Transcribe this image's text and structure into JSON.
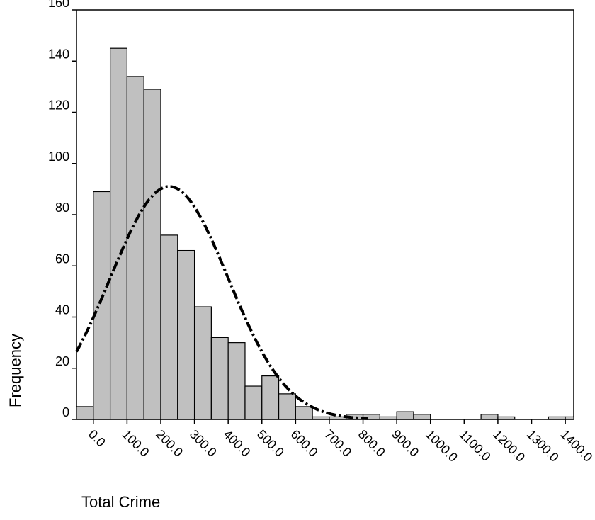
{
  "chart_data": {
    "type": "bar",
    "title": "",
    "xlabel": "Total Crime",
    "ylabel": "Frequency",
    "ylim": [
      0,
      160
    ],
    "xlim": [
      -50,
      1425
    ],
    "y_ticks": [
      "0",
      "20",
      "40",
      "60",
      "80",
      "100",
      "120",
      "140",
      "160"
    ],
    "x_ticks": [
      {
        "value": 0,
        "label": "0.0"
      },
      {
        "value": 100,
        "label": "100.0"
      },
      {
        "value": 200,
        "label": "200.0"
      },
      {
        "value": 300,
        "label": "300.0"
      },
      {
        "value": 400,
        "label": "400.0"
      },
      {
        "value": 500,
        "label": "500.0"
      },
      {
        "value": 600,
        "label": "600.0"
      },
      {
        "value": 700,
        "label": "700.0"
      },
      {
        "value": 800,
        "label": "800.0"
      },
      {
        "value": 900,
        "label": "900.0"
      },
      {
        "value": 1000,
        "label": "1000.0"
      },
      {
        "value": 1100,
        "label": "1100.0"
      },
      {
        "value": 1200,
        "label": "1200.0"
      },
      {
        "value": 1300,
        "label": "1300.0"
      },
      {
        "value": 1400,
        "label": "1400.0"
      }
    ],
    "bin_width": 50,
    "bins": [
      {
        "x": -25,
        "frequency": 5
      },
      {
        "x": 25,
        "frequency": 89
      },
      {
        "x": 75,
        "frequency": 145
      },
      {
        "x": 125,
        "frequency": 134
      },
      {
        "x": 175,
        "frequency": 129
      },
      {
        "x": 225,
        "frequency": 72
      },
      {
        "x": 275,
        "frequency": 66
      },
      {
        "x": 325,
        "frequency": 44
      },
      {
        "x": 375,
        "frequency": 32
      },
      {
        "x": 425,
        "frequency": 30
      },
      {
        "x": 475,
        "frequency": 13
      },
      {
        "x": 525,
        "frequency": 17
      },
      {
        "x": 575,
        "frequency": 10
      },
      {
        "x": 625,
        "frequency": 5
      },
      {
        "x": 675,
        "frequency": 1
      },
      {
        "x": 725,
        "frequency": 1
      },
      {
        "x": 775,
        "frequency": 2
      },
      {
        "x": 825,
        "frequency": 2
      },
      {
        "x": 875,
        "frequency": 1
      },
      {
        "x": 925,
        "frequency": 3
      },
      {
        "x": 975,
        "frequency": 2
      },
      {
        "x": 1175,
        "frequency": 2
      },
      {
        "x": 1225,
        "frequency": 1
      },
      {
        "x": 1375,
        "frequency": 1
      },
      {
        "x": 1425,
        "frequency": 1
      }
    ],
    "normal_curve": {
      "mean": 225,
      "sd": 175,
      "peak": 91,
      "style": "dash-dot"
    },
    "grid": false,
    "bar_color": "#c0c0c0",
    "bar_edge_color": "#000000",
    "curve_color": "#000000"
  }
}
